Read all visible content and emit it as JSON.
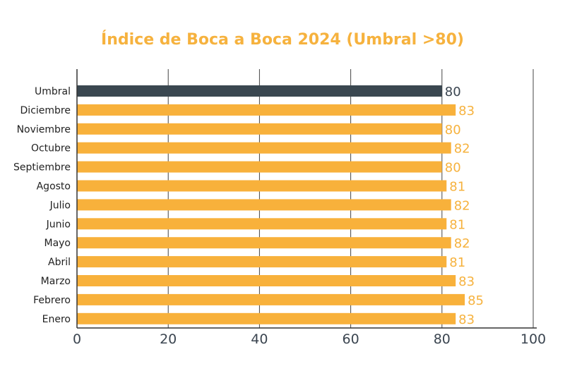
{
  "chart_data": {
    "type": "bar",
    "orientation": "horizontal",
    "title": "Índice de Boca a Boca 2024 (Umbral >80)",
    "xlabel": "",
    "ylabel": "",
    "xlim": [
      0,
      100
    ],
    "xticks": [
      "0",
      "20",
      "40",
      "60",
      "80",
      "100"
    ],
    "grid": true,
    "categories": [
      "Umbral",
      "Diciembre",
      "Noviembre",
      "Octubre",
      "Septiembre",
      "Agosto",
      "Julio",
      "Junio",
      "Mayo",
      "Abril",
      "Marzo",
      "Febrero",
      "Enero"
    ],
    "values": [
      80,
      83,
      80,
      82,
      80,
      81,
      82,
      81,
      82,
      81,
      83,
      85,
      83
    ],
    "colors": {
      "threshold": "#3A4750",
      "month": "#F8B13B",
      "title": "#F6B23E"
    }
  }
}
